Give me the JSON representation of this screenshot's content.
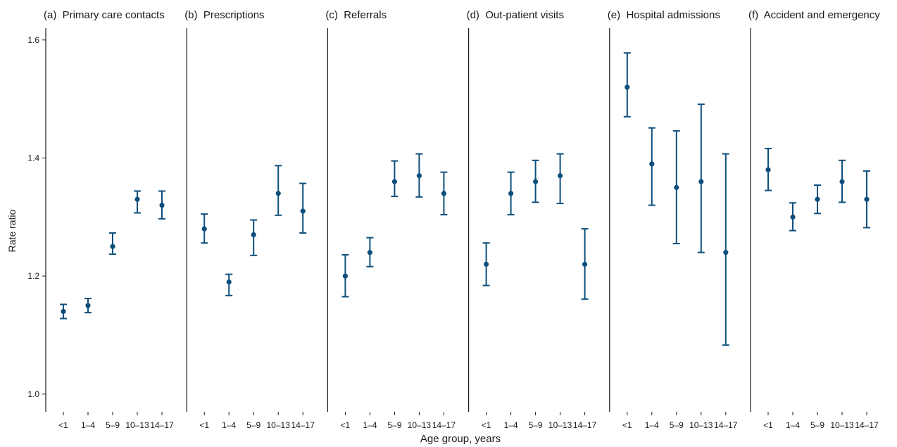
{
  "figure": {
    "ylabel": "Rate ratio",
    "xlabel": "Age group, years"
  },
  "chart_data": [
    {
      "type": "scatter",
      "title": "(a)  Primary care contacts",
      "categories": [
        "<1",
        "1–4",
        "5–9",
        "10–13",
        "14–17"
      ],
      "series": [
        {
          "values": [
            1.14,
            1.15,
            1.25,
            1.33,
            1.32
          ],
          "lower": [
            1.128,
            1.138,
            1.237,
            1.307,
            1.297
          ],
          "upper": [
            1.152,
            1.162,
            1.273,
            1.344,
            1.344
          ]
        }
      ],
      "ylim": [
        0.97,
        1.62
      ],
      "yticks": [
        1.0,
        1.2,
        1.4,
        1.6
      ],
      "xlabel": "",
      "ylabel": "Rate ratio",
      "grid": false
    },
    {
      "type": "scatter",
      "title": "(b)  Prescriptions",
      "categories": [
        "<1",
        "1–4",
        "5–9",
        "10–13",
        "14–17"
      ],
      "series": [
        {
          "values": [
            1.28,
            1.19,
            1.27,
            1.34,
            1.31
          ],
          "lower": [
            1.256,
            1.167,
            1.235,
            1.303,
            1.273
          ],
          "upper": [
            1.305,
            1.203,
            1.295,
            1.387,
            1.357
          ]
        }
      ],
      "ylim": [
        0.97,
        1.62
      ],
      "xlabel": "",
      "ylabel": "",
      "grid": false
    },
    {
      "type": "scatter",
      "title": "(c)  Referrals",
      "categories": [
        "<1",
        "1–4",
        "5–9",
        "10–13",
        "14–17"
      ],
      "series": [
        {
          "values": [
            1.2,
            1.24,
            1.36,
            1.37,
            1.34
          ],
          "lower": [
            1.165,
            1.216,
            1.335,
            1.334,
            1.304
          ],
          "upper": [
            1.236,
            1.265,
            1.395,
            1.407,
            1.376
          ]
        }
      ],
      "ylim": [
        0.97,
        1.62
      ],
      "xlabel": "",
      "ylabel": "",
      "grid": false
    },
    {
      "type": "scatter",
      "title": "(d)  Out-patient visits",
      "categories": [
        "<1",
        "1–4",
        "5–9",
        "10–13",
        "14–17"
      ],
      "series": [
        {
          "values": [
            1.22,
            1.34,
            1.36,
            1.37,
            1.22
          ],
          "lower": [
            1.184,
            1.304,
            1.325,
            1.323,
            1.161
          ],
          "upper": [
            1.256,
            1.376,
            1.396,
            1.407,
            1.28
          ]
        }
      ],
      "ylim": [
        0.97,
        1.62
      ],
      "xlabel": "",
      "ylabel": "",
      "grid": false
    },
    {
      "type": "scatter",
      "title": "(e)  Hospital admissions",
      "categories": [
        "<1",
        "1–4",
        "5–9",
        "10–13",
        "14–17"
      ],
      "series": [
        {
          "values": [
            1.52,
            1.39,
            1.35,
            1.36,
            1.24
          ],
          "lower": [
            1.47,
            1.32,
            1.255,
            1.24,
            1.083
          ],
          "upper": [
            1.578,
            1.451,
            1.446,
            1.491,
            1.407
          ]
        }
      ],
      "ylim": [
        0.97,
        1.62
      ],
      "xlabel": "",
      "ylabel": "",
      "grid": false
    },
    {
      "type": "scatter",
      "title": "(f)  Accident and emergency",
      "categories": [
        "<1",
        "1–4",
        "5–9",
        "10–13",
        "14–17"
      ],
      "series": [
        {
          "values": [
            1.38,
            1.3,
            1.33,
            1.36,
            1.33
          ],
          "lower": [
            1.345,
            1.277,
            1.306,
            1.325,
            1.282
          ],
          "upper": [
            1.416,
            1.324,
            1.354,
            1.396,
            1.378
          ]
        }
      ],
      "ylim": [
        0.97,
        1.62
      ],
      "xlabel": "",
      "ylabel": "",
      "grid": false
    }
  ],
  "colors": {
    "marker": "#0d4f7c",
    "axis": "#1a1a1a"
  }
}
